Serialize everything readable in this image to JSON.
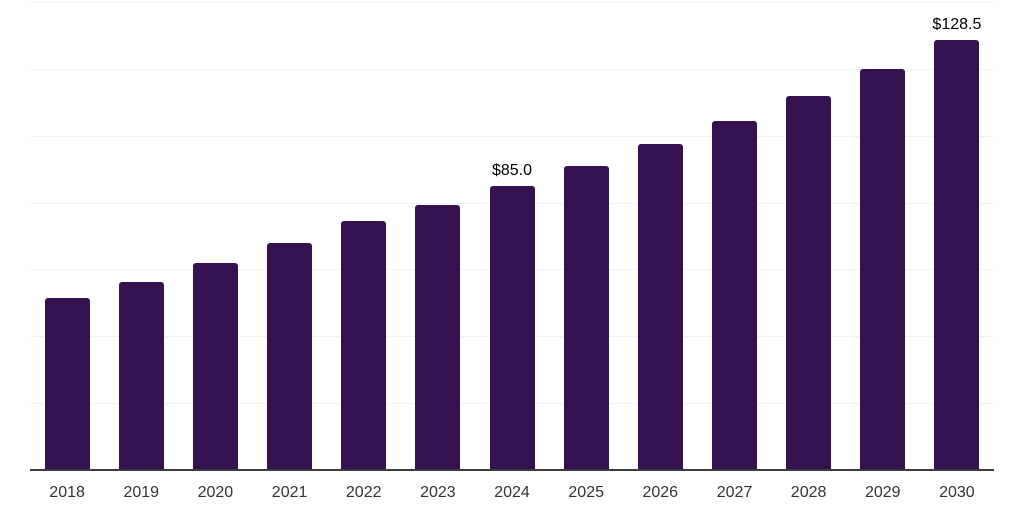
{
  "chart_data": {
    "type": "bar",
    "title": "",
    "xlabel": "",
    "ylabel": "",
    "categories": [
      "2018",
      "2019",
      "2020",
      "2021",
      "2022",
      "2023",
      "2024",
      "2025",
      "2026",
      "2027",
      "2028",
      "2029",
      "2030"
    ],
    "values": [
      51.4,
      56.2,
      62.0,
      68.0,
      74.5,
      79.4,
      85.0,
      91.1,
      97.6,
      104.5,
      112.0,
      120.0,
      128.5
    ],
    "value_labels": {
      "2024": "$85.0",
      "2030": "$128.5"
    },
    "value_prefix": "$",
    "ylim": [
      0,
      140
    ],
    "gridline_values": [
      20,
      40,
      60,
      80,
      100,
      120,
      140
    ],
    "grid": "horizontal",
    "legend_position": "none",
    "colors": {
      "bar": "#361150",
      "gridline": "#f2f2f2",
      "axis_line": "#3c3c3c",
      "tick_label": "#333333",
      "value_label": "#000000",
      "background": "#ffffff"
    }
  }
}
